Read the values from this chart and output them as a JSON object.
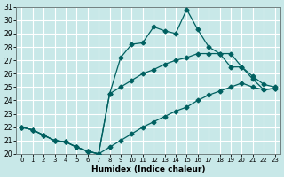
{
  "xlabel": "Humidex (Indice chaleur)",
  "bg_color": "#c8e8e8",
  "grid_color": "#ffffff",
  "line_color": "#006060",
  "xlim": [
    -0.5,
    23.5
  ],
  "ylim": [
    20,
    31
  ],
  "xticks": [
    0,
    1,
    2,
    3,
    4,
    5,
    6,
    7,
    8,
    9,
    10,
    11,
    12,
    13,
    14,
    15,
    16,
    17,
    18,
    19,
    20,
    21,
    22,
    23
  ],
  "yticks": [
    20,
    21,
    22,
    23,
    24,
    25,
    26,
    27,
    28,
    29,
    30,
    31
  ],
  "line1_x": [
    0,
    1,
    2,
    3,
    4,
    5,
    6,
    7,
    8,
    9,
    10,
    11,
    12,
    13,
    14,
    15,
    16,
    17,
    18,
    19,
    20,
    21,
    22,
    23
  ],
  "line1_y": [
    22.0,
    21.8,
    21.4,
    21.0,
    20.9,
    20.5,
    20.2,
    20.0,
    20.5,
    21.0,
    21.5,
    22.0,
    22.4,
    22.8,
    23.2,
    23.5,
    24.0,
    24.4,
    24.7,
    25.0,
    25.3,
    25.0,
    24.8,
    24.9
  ],
  "line2_x": [
    0,
    1,
    2,
    3,
    4,
    5,
    6,
    7,
    8,
    9,
    10,
    11,
    12,
    13,
    14,
    15,
    16,
    17,
    18,
    19,
    20,
    21,
    22,
    23
  ],
  "line2_y": [
    22.0,
    21.8,
    21.4,
    21.0,
    20.9,
    20.5,
    20.2,
    20.0,
    24.5,
    25.0,
    25.5,
    26.0,
    26.3,
    26.7,
    27.0,
    27.2,
    27.5,
    27.5,
    27.5,
    26.5,
    26.5,
    25.8,
    25.2,
    25.0
  ],
  "line3_x": [
    0,
    1,
    2,
    3,
    4,
    5,
    6,
    7,
    8,
    9,
    10,
    11,
    12,
    13,
    14,
    15,
    16,
    17,
    18,
    19,
    20,
    21,
    22,
    23
  ],
  "line3_y": [
    22.0,
    21.8,
    21.4,
    21.0,
    20.9,
    20.5,
    20.2,
    20.0,
    24.5,
    27.2,
    28.2,
    28.3,
    29.5,
    29.2,
    29.0,
    30.8,
    29.3,
    28.0,
    27.5,
    27.5,
    26.5,
    25.6,
    24.8,
    24.9
  ],
  "marker": "D",
  "marker_size": 2.5,
  "linewidth": 0.9
}
